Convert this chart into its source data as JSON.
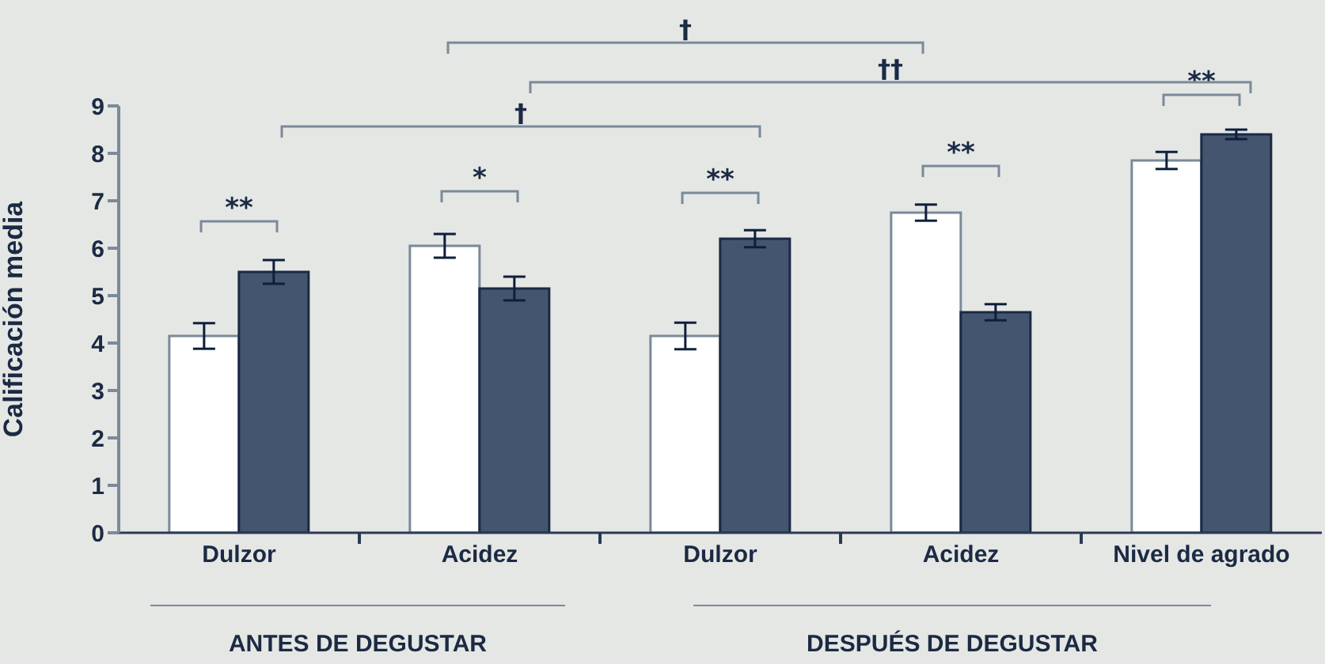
{
  "chart_data": {
    "type": "bar",
    "ylabel": "Calificación media",
    "categories": [
      "Dulzor",
      "Acidez",
      "Dulzor",
      "Acidez",
      "Nivel de agrado"
    ],
    "series": [
      {
        "color": "#ffffff",
        "values": [
          4.15,
          6.05,
          4.15,
          6.75,
          7.85
        ],
        "errors": [
          0.27,
          0.25,
          0.28,
          0.17,
          0.18
        ]
      },
      {
        "color": "#44566f",
        "values": [
          5.5,
          5.15,
          6.2,
          4.65,
          8.4
        ],
        "errors": [
          0.25,
          0.25,
          0.18,
          0.17,
          0.1
        ]
      }
    ],
    "ylim": [
      0,
      9
    ],
    "yticks": [
      0,
      1,
      2,
      3,
      4,
      5,
      6,
      7,
      8,
      9
    ],
    "grid": false,
    "legend": false,
    "annotations": [
      "**",
      "*",
      "**",
      "**",
      "**",
      "†",
      "††",
      "†",
      "ANTES DE DEGUSTAR",
      "DESPUÉS DE DEGUSTAR"
    ]
  }
}
